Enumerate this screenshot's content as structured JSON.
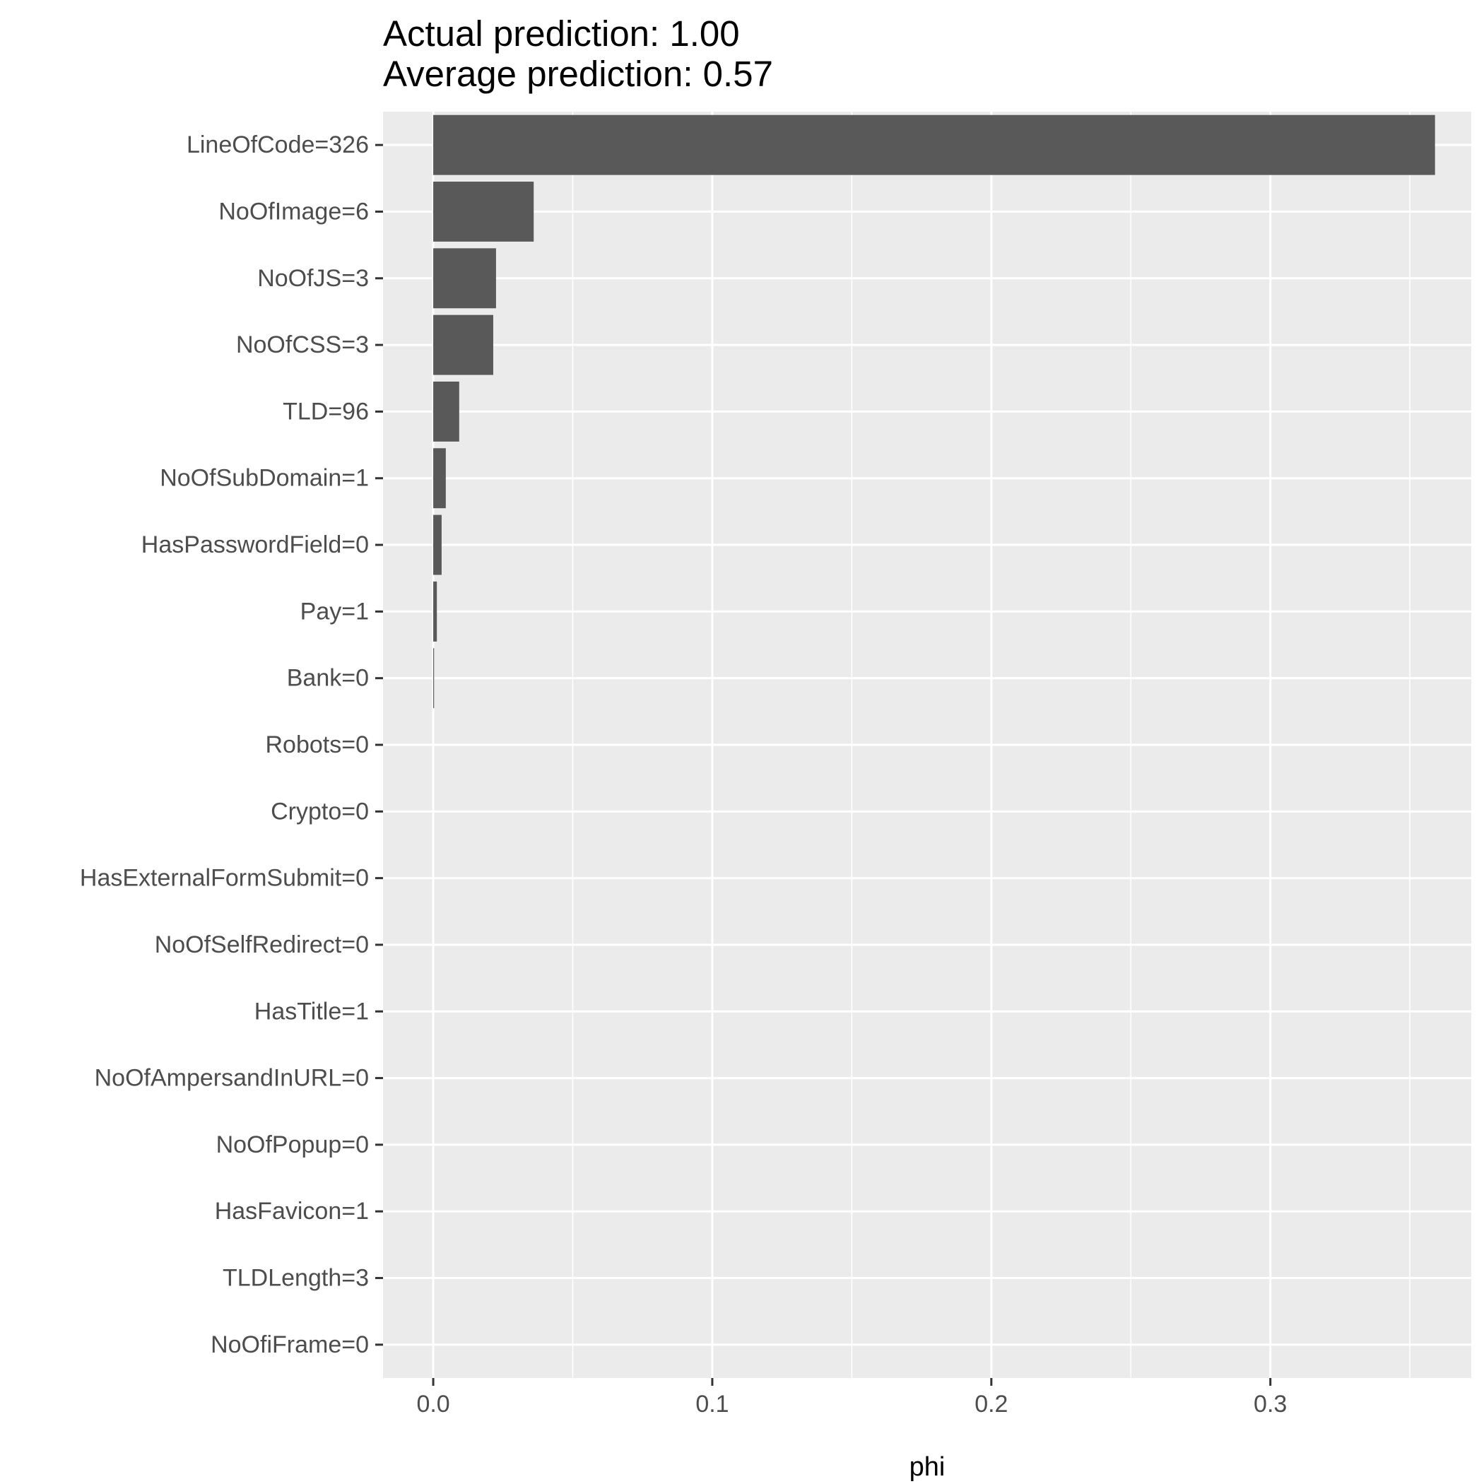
{
  "chart_data": {
    "type": "bar",
    "orientation": "horizontal",
    "title_lines": [
      "Actual prediction: 1.00",
      "Average prediction: 0.57"
    ],
    "xlabel": "phi",
    "ylabel": "",
    "categories": [
      "LineOfCode=326",
      "NoOfImage=6",
      "NoOfJS=3",
      "NoOfCSS=3",
      "TLD=96",
      "NoOfSubDomain=1",
      "HasPasswordField=0",
      "Pay=1",
      "Bank=0",
      "Robots=0",
      "Crypto=0",
      "HasExternalFormSubmit=0",
      "NoOfSelfRedirect=0",
      "HasTitle=1",
      "NoOfAmpersandInURL=0",
      "NoOfPopup=0",
      "HasFavicon=1",
      "TLDLength=3",
      "NoOfiFrame=0"
    ],
    "values": [
      0.359,
      0.036,
      0.0225,
      0.0215,
      0.0093,
      0.0045,
      0.003,
      0.0013,
      0.0003,
      0,
      0,
      0,
      0,
      0,
      0,
      0,
      0,
      0,
      0
    ],
    "xlim": [
      -0.018,
      0.372
    ],
    "xticks": [
      0.0,
      0.1,
      0.2,
      0.3
    ],
    "xtick_labels": [
      "0.0",
      "0.1",
      "0.2",
      "0.3"
    ],
    "grid": true,
    "colors": {
      "bar": "#595959",
      "panel": "#ebebeb",
      "grid": "#ffffff",
      "axis_text": "#4d4d4d",
      "tick": "#333333"
    }
  }
}
